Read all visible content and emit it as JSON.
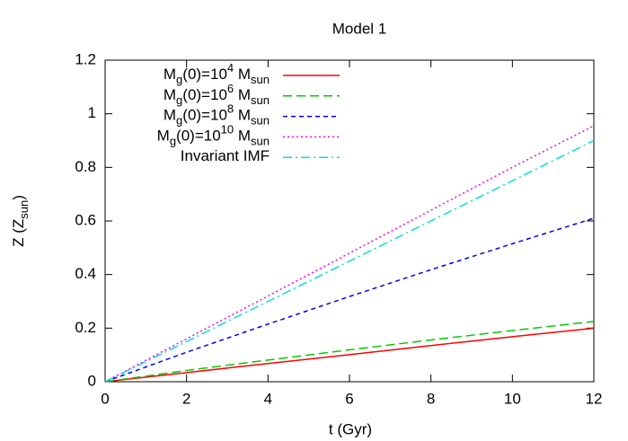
{
  "chart_data": {
    "type": "line",
    "title": "Model 1",
    "xlabel": "t (Gyr)",
    "ylabel": "Z (Z_{sun})",
    "x": [
      0,
      2,
      4,
      6,
      8,
      10,
      12
    ],
    "series": [
      {
        "name": "M_{g}(0)=10^{4} M_{sun}",
        "color": "#ff0000",
        "dash": "none",
        "values": [
          0,
          0.034,
          0.068,
          0.101,
          0.135,
          0.168,
          0.2
        ]
      },
      {
        "name": "M_{g}(0)=10^{6} M_{sun}",
        "color": "#00cc00",
        "dash": "10,5",
        "values": [
          0,
          0.042,
          0.081,
          0.119,
          0.156,
          0.191,
          0.225
        ]
      },
      {
        "name": "M_{g}(0)=10^{8} M_{sun}",
        "color": "#0000ff",
        "dash": "5,4",
        "values": [
          0,
          0.11,
          0.215,
          0.318,
          0.418,
          0.515,
          0.61
        ]
      },
      {
        "name": "M_{g}(0)=10^{10} M_{sun}",
        "color": "#ff00ff",
        "dash": "2,3",
        "values": [
          0,
          0.16,
          0.32,
          0.48,
          0.64,
          0.8,
          0.955
        ]
      },
      {
        "name": "Invariant IMF",
        "color": "#00e0e0",
        "dash": "10,4,2,4",
        "values": [
          0,
          0.15,
          0.3,
          0.45,
          0.6,
          0.75,
          0.9
        ]
      }
    ],
    "xlim": [
      0,
      12
    ],
    "xticks": [
      0,
      2,
      4,
      6,
      8,
      10,
      12
    ],
    "ylim": [
      0,
      1.2
    ],
    "yticks": [
      0,
      0.2,
      0.4,
      0.6,
      0.8,
      1,
      1.2
    ],
    "legend": "top-left",
    "grid": false
  }
}
